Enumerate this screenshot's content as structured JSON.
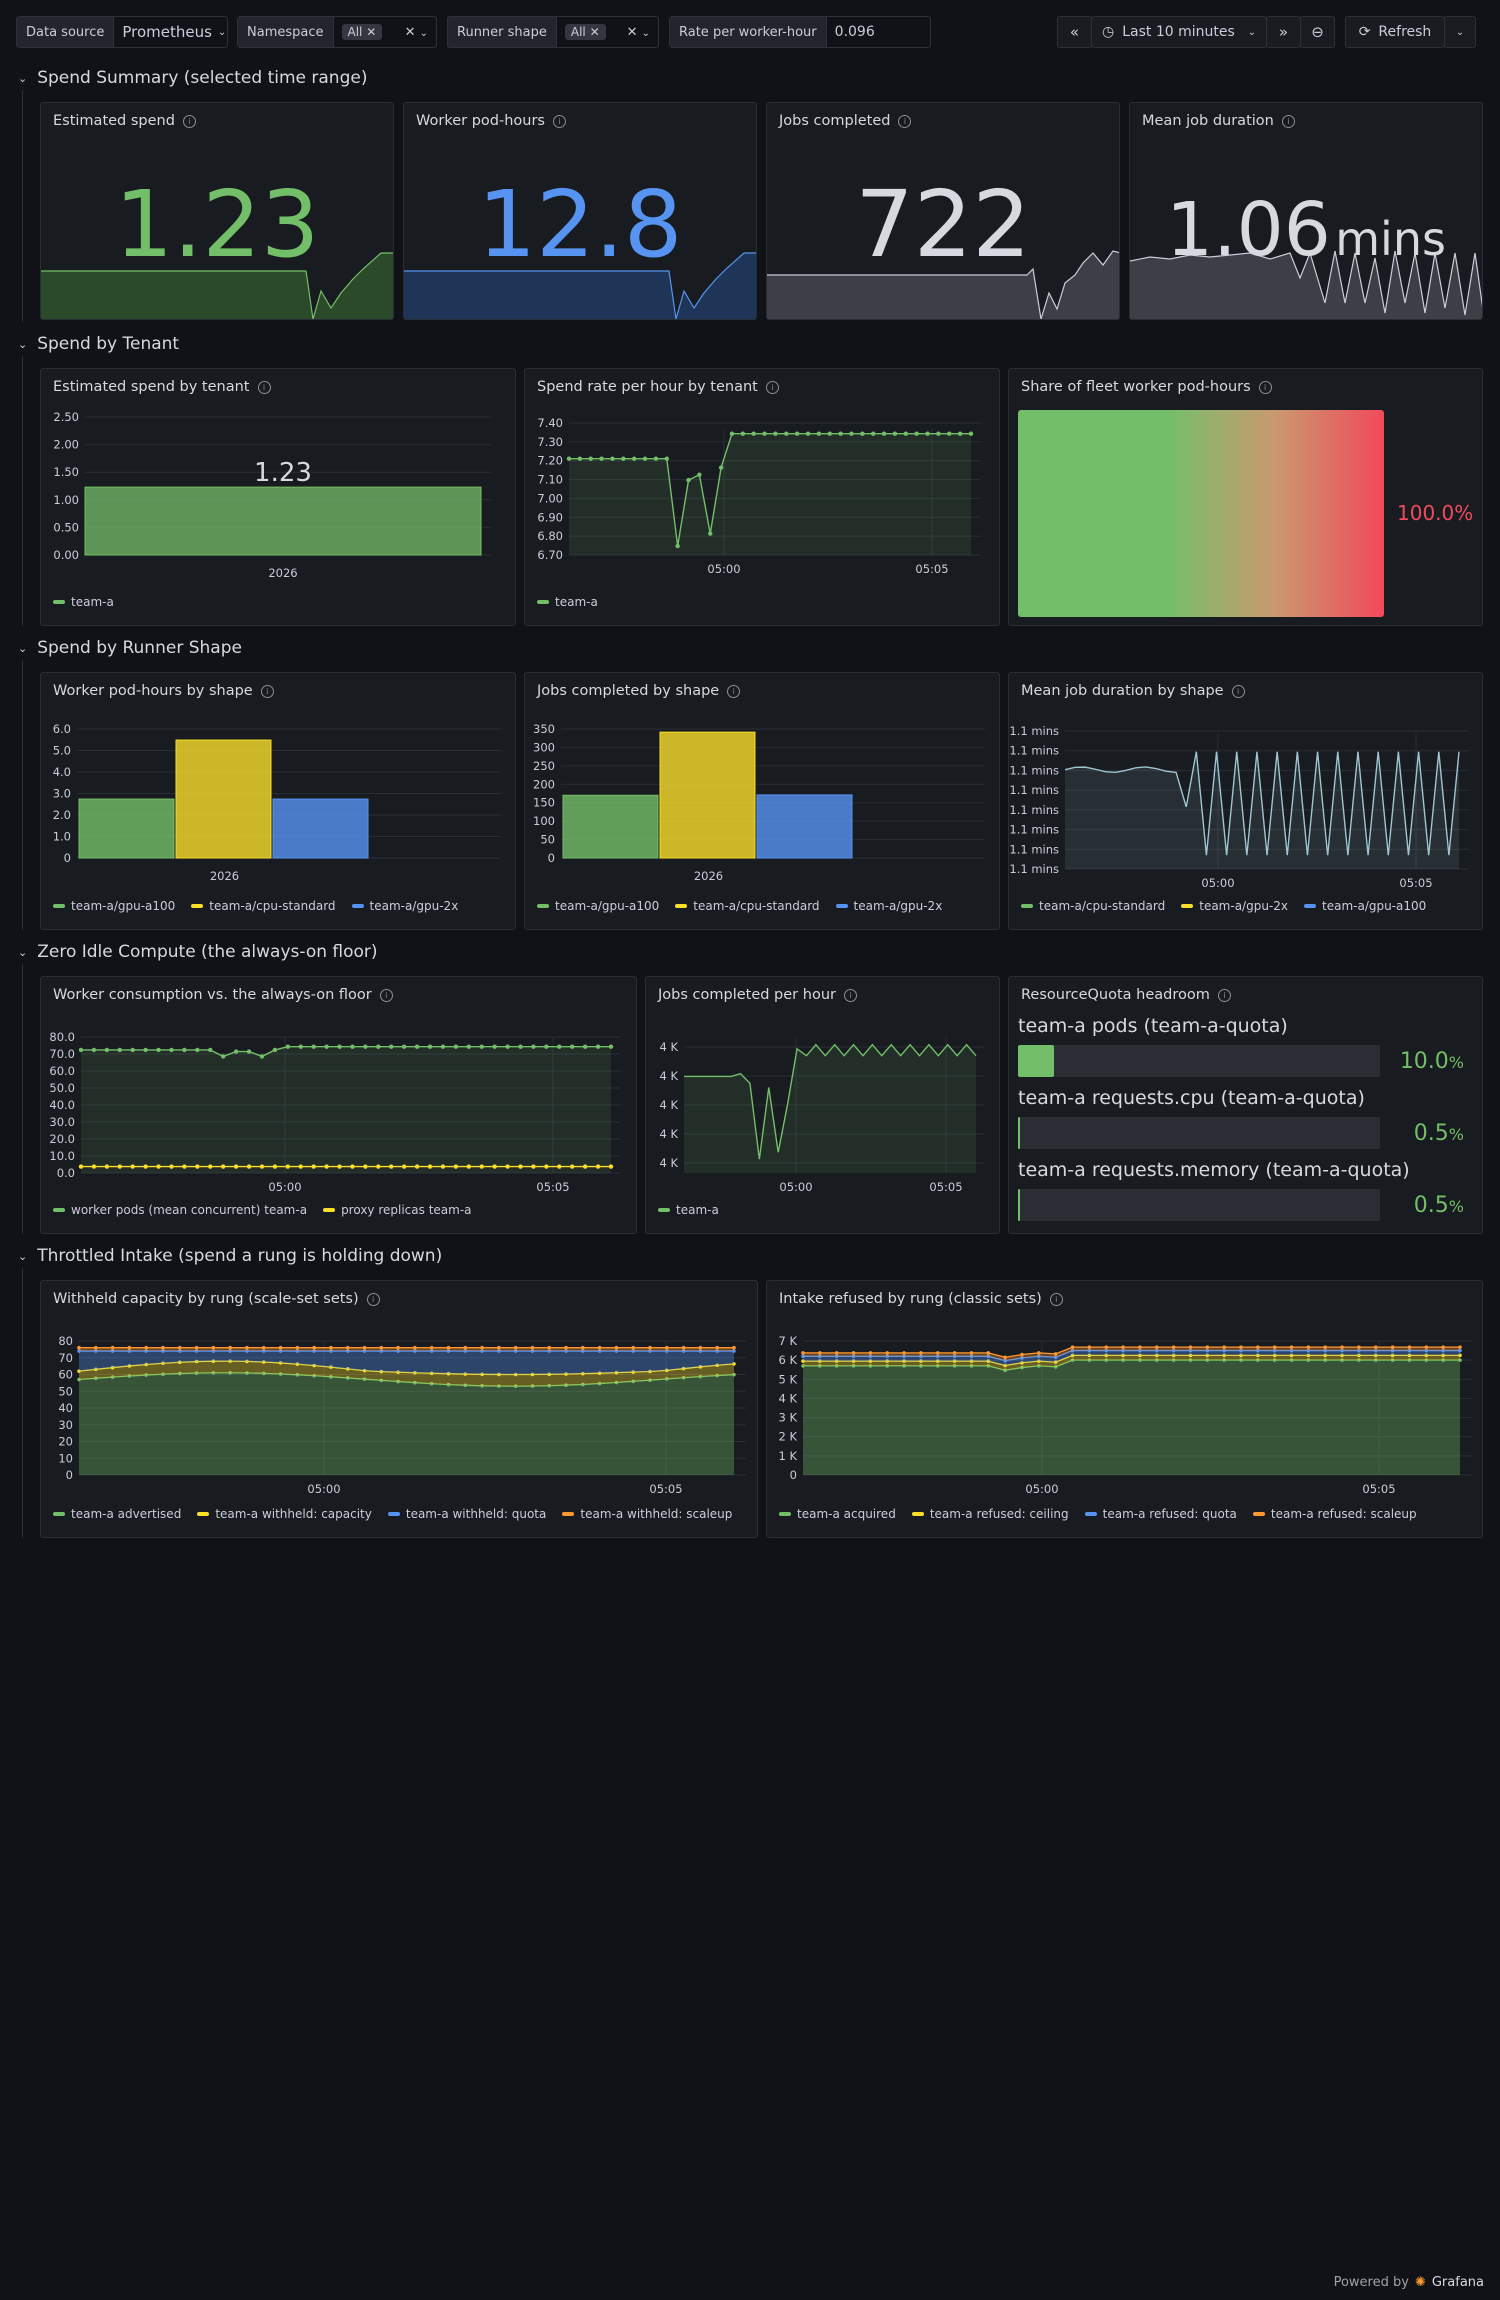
{
  "toolbar": {
    "datasource_label": "Data source",
    "datasource_value": "Prometheus",
    "namespace_label": "Namespace",
    "namespace_value": "All",
    "runner_label": "Runner shape",
    "runner_value": "All",
    "rate_label": "Rate per worker-hour",
    "rate_value": "0.096",
    "time_range": "Last 10 minutes",
    "refresh_label": "Refresh"
  },
  "colors": {
    "green": "#73bf69",
    "blue": "#5794f2",
    "yellow": "#fade2a",
    "orange": "#ff9830",
    "red": "#f2495c",
    "gray": "#ccccdc"
  },
  "sections": {
    "s1": "Spend Summary (selected time range)",
    "s2": "Spend by Tenant",
    "s3": "Spend by Runner Shape",
    "s4": "Zero Idle Compute (the always-on floor)",
    "s5": "Throttled Intake (spend a rung is holding down)"
  },
  "panels": {
    "est_spend": {
      "title": "Estimated spend",
      "value": "1.23"
    },
    "pod_hours": {
      "title": "Worker pod-hours",
      "value": "12.8"
    },
    "jobs": {
      "title": "Jobs completed",
      "value": "722"
    },
    "duration": {
      "title": "Mean job duration",
      "value": "1.06",
      "unit": "mins"
    },
    "tenant_spend": {
      "title": "Estimated spend by tenant",
      "legend": "team-a"
    },
    "spend_rate": {
      "title": "Spend rate per hour by tenant",
      "legend": "team-a"
    },
    "share": {
      "title": "Share of fleet worker pod-hours",
      "value": "100.0%"
    },
    "shape_pod": {
      "title": "Worker pod-hours by shape",
      "legend": [
        "team-a/gpu-a100",
        "team-a/cpu-standard",
        "team-a/gpu-2x"
      ]
    },
    "shape_jobs": {
      "title": "Jobs completed by shape",
      "legend": [
        "team-a/gpu-a100",
        "team-a/cpu-standard",
        "team-a/gpu-2x"
      ]
    },
    "shape_dur": {
      "title": "Mean job duration by shape",
      "legend": [
        "team-a/cpu-standard",
        "team-a/gpu-2x",
        "team-a/gpu-a100"
      ]
    },
    "floor": {
      "title": "Worker consumption vs. the always-on floor",
      "legend": [
        "worker pods (mean concurrent) team-a",
        "proxy replicas team-a"
      ]
    },
    "jobs_hour": {
      "title": "Jobs completed per hour",
      "legend": "team-a"
    },
    "quota": {
      "title": "ResourceQuota headroom",
      "rows": [
        {
          "label": "team-a pods (team-a-quota)",
          "value": "10.0",
          "fraction": 0.1
        },
        {
          "label": "team-a requests.cpu (team-a-quota)",
          "value": "0.5",
          "fraction": 0.005
        },
        {
          "label": "team-a requests.memory (team-a-quota)",
          "value": "0.5",
          "fraction": 0.005
        }
      ],
      "unit": "%"
    },
    "withheld": {
      "title": "Withheld capacity by rung (scale-set sets)",
      "legend": [
        "team-a advertised",
        "team-a withheld: capacity",
        "team-a withheld: quota",
        "team-a withheld: scaleup"
      ]
    },
    "refused": {
      "title": "Intake refused by rung (classic sets)",
      "legend": [
        "team-a acquired",
        "team-a refused: ceiling",
        "team-a refused: quota",
        "team-a refused: scaleup"
      ]
    }
  },
  "footer": {
    "powered": "Powered by",
    "brand": "Grafana"
  },
  "chart_data": [
    {
      "id": "tenant_spend",
      "type": "bar",
      "categories": [
        "2026"
      ],
      "series": [
        {
          "name": "team-a",
          "values": [
            1.23
          ]
        }
      ],
      "ylim": [
        0,
        2.5
      ],
      "yticks": [
        "0.00",
        "0.50",
        "1.00",
        "1.50",
        "2.00",
        "2.50"
      ],
      "value_label": "1.23"
    },
    {
      "id": "spend_rate",
      "type": "line",
      "xticks": [
        "05:00",
        "05:05"
      ],
      "yticks": [
        "6.70",
        "6.80",
        "6.90",
        "7.00",
        "7.10",
        "7.20",
        "7.30",
        "7.40"
      ],
      "ylim": [
        6.68,
        7.42
      ],
      "series": [
        {
          "name": "team-a",
          "values": [
            7.22,
            7.22,
            7.22,
            7.22,
            7.22,
            7.22,
            7.22,
            7.22,
            7.22,
            7.22,
            6.73,
            7.1,
            7.13,
            6.8,
            7.17,
            7.36,
            7.36,
            7.36,
            7.36,
            7.36,
            7.36,
            7.36,
            7.36,
            7.36,
            7.36,
            7.36,
            7.36,
            7.36,
            7.36,
            7.36,
            7.36,
            7.36,
            7.36,
            7.36,
            7.36,
            7.36,
            7.36,
            7.36
          ]
        }
      ]
    },
    {
      "id": "share",
      "type": "bar",
      "series": [
        {
          "name": "team-a",
          "values": [
            100.0
          ]
        }
      ]
    },
    {
      "id": "shape_pod",
      "type": "bar",
      "categories": [
        "2026"
      ],
      "series": [
        {
          "name": "team-a/gpu-a100",
          "values": [
            3.2
          ]
        },
        {
          "name": "team-a/cpu-standard",
          "values": [
            6.4
          ]
        },
        {
          "name": "team-a/gpu-2x",
          "values": [
            3.2
          ]
        }
      ],
      "ylim": [
        0,
        7
      ],
      "yticks": [
        "0",
        "1.0",
        "2.0",
        "3.0",
        "4.0",
        "5.0",
        "6.0"
      ]
    },
    {
      "id": "shape_jobs",
      "type": "bar",
      "categories": [
        "2026"
      ],
      "series": [
        {
          "name": "team-a/gpu-a100",
          "values": [
            180
          ]
        },
        {
          "name": "team-a/cpu-standard",
          "values": [
            361
          ]
        },
        {
          "name": "team-a/gpu-2x",
          "values": [
            181
          ]
        }
      ],
      "ylim": [
        0,
        370
      ],
      "yticks": [
        "0",
        "50",
        "100",
        "150",
        "200",
        "250",
        "300",
        "350"
      ]
    },
    {
      "id": "shape_dur",
      "type": "line",
      "xticks": [
        "05:00",
        "05:05"
      ],
      "yticks": [
        "1.1 mins",
        "1.1 mins",
        "1.1 mins",
        "1.1 mins",
        "1.1 mins",
        "1.1 mins",
        "1.1 mins",
        "1.1 mins"
      ]
    },
    {
      "id": "floor",
      "type": "line",
      "xticks": [
        "05:00",
        "05:05"
      ],
      "yticks": [
        "0.0",
        "10.0",
        "20.0",
        "30.0",
        "40.0",
        "50.0",
        "60.0",
        "70.0",
        "80.0"
      ],
      "ylim": [
        0,
        84
      ],
      "series": [
        {
          "name": "worker pods (mean concurrent) team-a",
          "values": [
            76,
            76,
            76,
            76,
            76,
            76,
            76,
            76,
            76,
            76,
            76,
            72,
            75,
            75,
            72,
            76,
            78,
            78,
            78,
            78,
            78,
            78,
            78,
            78,
            78,
            78,
            78,
            78,
            78,
            78,
            78,
            78,
            78,
            78,
            78,
            78,
            78,
            78,
            78,
            78,
            78,
            78
          ]
        },
        {
          "name": "proxy replicas team-a",
          "values": [
            4,
            4,
            4,
            4,
            4,
            4,
            4,
            4,
            4,
            4,
            4,
            4,
            4,
            4,
            4,
            4,
            4,
            4,
            4,
            4,
            4,
            4,
            4,
            4,
            4,
            4,
            4,
            4,
            4,
            4,
            4,
            4,
            4,
            4,
            4,
            4,
            4,
            4,
            4,
            4,
            4,
            4
          ]
        }
      ]
    },
    {
      "id": "jobs_hour",
      "type": "line",
      "xticks": [
        "05:00",
        "05:05"
      ],
      "yticks": [
        "4 K",
        "4 K",
        "4 K",
        "4 K",
        "4 K"
      ],
      "series": [
        {
          "name": "team-a",
          "values": [
            0.7,
            0.7,
            0.7,
            0.7,
            0.7,
            0.7,
            0.72,
            0.65,
            0.1,
            0.62,
            0.15,
            0.5,
            0.9,
            0.85,
            0.93,
            0.85,
            0.93,
            0.85,
            0.93,
            0.85,
            0.93,
            0.85,
            0.93,
            0.85,
            0.93,
            0.85,
            0.93,
            0.85,
            0.93,
            0.85,
            0.93,
            0.85
          ]
        }
      ]
    },
    {
      "id": "withheld",
      "type": "area",
      "xticks": [
        "05:00",
        "05:05"
      ],
      "yticks": [
        "0",
        "10",
        "20",
        "30",
        "40",
        "50",
        "60",
        "70",
        "80"
      ],
      "ylim": [
        0,
        80
      ]
    },
    {
      "id": "refused",
      "type": "area",
      "xticks": [
        "05:00",
        "05:05"
      ],
      "yticks": [
        "0",
        "1 K",
        "2 K",
        "3 K",
        "4 K",
        "5 K",
        "6 K",
        "7 K"
      ],
      "ylim": [
        0,
        7
      ]
    }
  ]
}
